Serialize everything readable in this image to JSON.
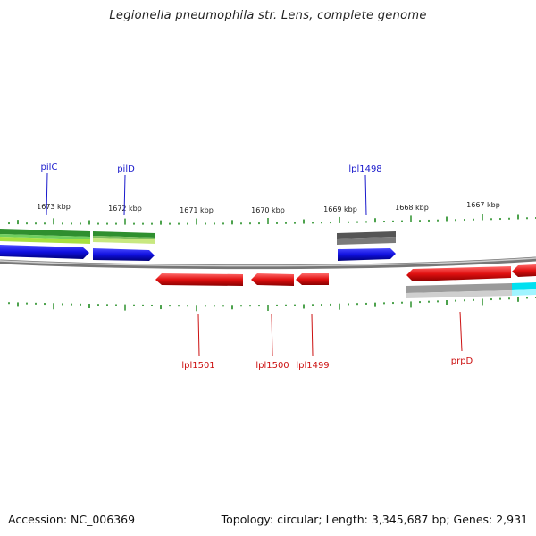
{
  "title": "Legionella pneumophila str. Lens, complete genome",
  "footer": {
    "accession": "Accession: NC_006369",
    "topology": "Topology: circular; Length: 3,345,687 bp; Genes: 2,931"
  },
  "scale_labels": [
    "1673 kbp",
    "1672 kbp",
    "1671 kbp",
    "1670 kbp",
    "1669 kbp",
    "1668 kbp",
    "1667 kbp"
  ],
  "gene_labels": {
    "forward": [
      "pilC",
      "pilD",
      "lpl1498"
    ],
    "reverse": [
      "lpl1501",
      "lpl1500",
      "lpl1499",
      "prpD"
    ]
  },
  "colors": {
    "forward_label": "#1a1acc",
    "reverse_label": "#cc1111",
    "tick": "#1f8a1f",
    "backbone": "#888888",
    "gene_blue": "#1010e0",
    "gene_red": "#e01010",
    "cog_green": "#2f8f2f",
    "cog_lime": "#a8e040",
    "cog_gray": "#555555",
    "cog_lightgray": "#c0c0c0",
    "cog_cyan": "#00e0f0"
  }
}
